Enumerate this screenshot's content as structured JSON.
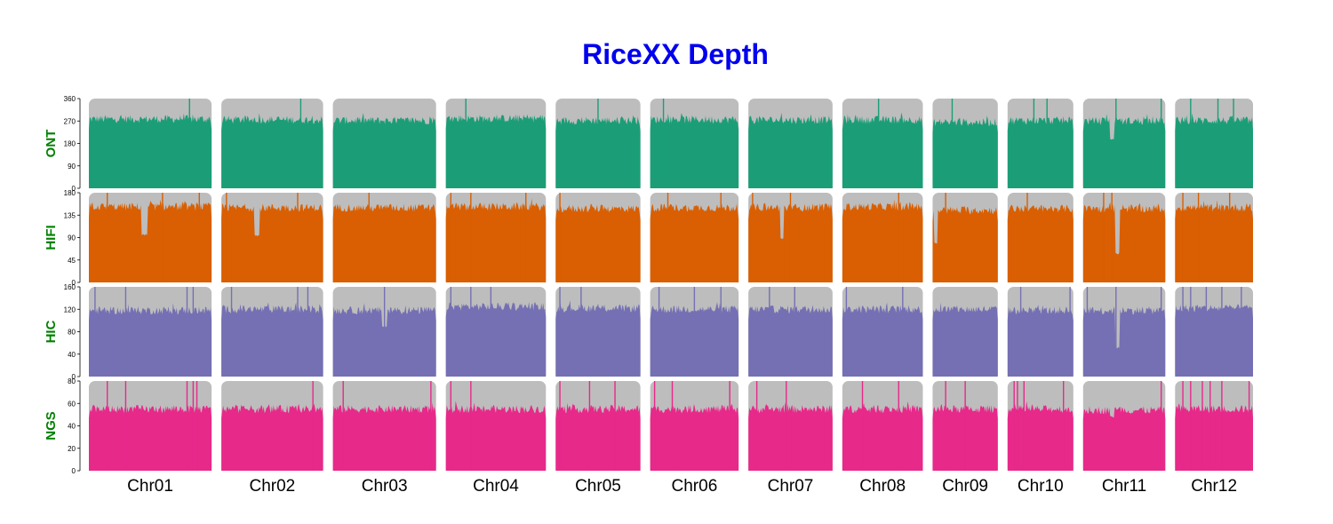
{
  "chart_data": {
    "type": "area",
    "title": "RiceXX Depth",
    "title_color": "#0000ee",
    "row_label_color": "#008000",
    "panel_bg_color": "#bdbdbd",
    "categories": [
      "Chr01",
      "Chr02",
      "Chr03",
      "Chr04",
      "Chr05",
      "Chr06",
      "Chr07",
      "Chr08",
      "Chr09",
      "Chr10",
      "Chr11",
      "Chr12"
    ],
    "chromosome_relative_length": [
      43.3,
      35.9,
      36.4,
      35.3,
      29.9,
      31.2,
      29.7,
      28.4,
      23.0,
      23.2,
      29.0,
      27.5
    ],
    "rows": [
      {
        "name": "ONT",
        "color": "#1b9e77",
        "ylim": [
          0,
          360
        ],
        "yticks": [
          0,
          90,
          180,
          270,
          360
        ],
        "mean_depth": [
          278,
          275,
          272,
          280,
          272,
          276,
          274,
          275,
          265,
          272,
          270,
          272
        ],
        "spikes": [
          [
            0.82
          ],
          [
            0.78
          ],
          [],
          [
            0.2
          ],
          [
            0.5
          ],
          [
            0.15
          ],
          [],
          [
            0.45
          ],
          [
            0.3
          ],
          [
            0.4,
            0.6
          ],
          [
            0.4,
            0.95
          ],
          [
            0.2,
            0.55,
            0.75
          ]
        ],
        "dips": [
          [],
          [],
          [],
          [],
          [],
          [],
          [],
          [],
          [],
          [],
          [
            [
              0.35,
              200
            ]
          ],
          []
        ]
      },
      {
        "name": "HIFI",
        "color": "#d95f02",
        "ylim": [
          0,
          180
        ],
        "yticks": [
          0,
          45,
          90,
          135,
          180
        ],
        "mean_depth": [
          152,
          150,
          150,
          152,
          148,
          150,
          150,
          152,
          145,
          148,
          148,
          150
        ],
        "spikes": [
          [
            0.15,
            0.6,
            0.9
          ],
          [
            0.05,
            0.75
          ],
          [
            0.35
          ],
          [
            0.05,
            0.25,
            0.8
          ],
          [
            0.05
          ],
          [
            0.2,
            0.8
          ],
          [
            0.05,
            0.5
          ],
          [
            0.7
          ],
          [
            0.2
          ],
          [
            0.3
          ],
          [
            0.25,
            0.35
          ],
          [
            0.1,
            0.3,
            0.7
          ]
        ],
        "dips": [
          [
            [
              0.45,
              95
            ]
          ],
          [
            [
              0.35,
              95
            ]
          ],
          [],
          [],
          [],
          [],
          [
            [
              0.4,
              88
            ]
          ],
          [],
          [
            [
              0.05,
              80
            ]
          ],
          [],
          [
            [
              0.42,
              58
            ]
          ],
          []
        ]
      },
      {
        "name": "HIC",
        "color": "#7570b3",
        "ylim": [
          0,
          160
        ],
        "yticks": [
          0,
          40,
          80,
          120,
          160
        ],
        "mean_depth": [
          118,
          120,
          118,
          125,
          122,
          120,
          120,
          120,
          120,
          118,
          118,
          122
        ],
        "spikes": [
          [
            0.05,
            0.3,
            0.8,
            0.85
          ],
          [
            0.1,
            0.75,
            0.85
          ],
          [
            0.5
          ],
          [
            0.05,
            0.25,
            0.45
          ],
          [
            0.05,
            0.3
          ],
          [
            0.1,
            0.5,
            0.8
          ],
          [
            0.25,
            0.55
          ],
          [
            0.05,
            0.75
          ],
          [],
          [
            0.2,
            0.95
          ],
          [
            0.05,
            0.4,
            0.95
          ],
          [
            0.1,
            0.2,
            0.4,
            0.6,
            0.85
          ]
        ],
        "dips": [
          [],
          [],
          [
            [
              0.5,
              90
            ]
          ],
          [],
          [],
          [],
          [],
          [],
          [],
          [],
          [
            [
              0.42,
              52
            ]
          ],
          []
        ]
      },
      {
        "name": "NGS",
        "color": "#e7298a",
        "ylim": [
          0,
          80
        ],
        "yticks": [
          0,
          20,
          40,
          60,
          80
        ],
        "mean_depth": [
          55,
          55,
          55,
          55,
          55,
          55,
          55,
          55,
          55,
          55,
          54,
          55
        ],
        "spikes": [
          [
            0.15,
            0.3,
            0.8,
            0.85,
            0.88
          ],
          [
            0.9
          ],
          [
            0.1,
            0.95
          ],
          [
            0.05,
            0.25
          ],
          [
            0.05,
            0.4,
            0.7
          ],
          [
            0.05,
            0.25,
            0.9
          ],
          [
            0.1,
            0.45
          ],
          [
            0.25,
            0.7
          ],
          [
            0.2,
            0.5
          ],
          [
            0.1,
            0.15,
            0.25,
            0.85
          ],
          [
            0.95
          ],
          [
            0.1,
            0.2,
            0.35,
            0.45,
            0.6,
            0.95
          ]
        ],
        "dips": [
          [],
          [],
          [],
          [],
          [],
          [],
          [],
          [],
          [],
          [],
          [
            [
              0.35,
              48
            ]
          ],
          []
        ]
      }
    ]
  }
}
